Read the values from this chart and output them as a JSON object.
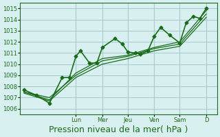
{
  "bg_color": "#d8f0f0",
  "grid_color": "#aacccc",
  "line_color": "#1a6b1a",
  "yticks": [
    1006,
    1007,
    1008,
    1009,
    1010,
    1011,
    1012,
    1013,
    1014,
    1015
  ],
  "ylim": [
    1005.5,
    1015.5
  ],
  "xlabel": "Pression niveau de la mer( hPa )",
  "xlabel_fontsize": 9,
  "day_labels": [
    "Lun",
    "Mer",
    "Jeu",
    "Ven",
    "Sam",
    "D"
  ],
  "day_positions": [
    0.285,
    0.43,
    0.57,
    0.715,
    0.855,
    1.0
  ],
  "series": [
    [
      [
        0.0,
        1007.7
      ],
      [
        0.07,
        1007.2
      ],
      [
        0.14,
        1006.5
      ],
      [
        0.21,
        1008.8
      ],
      [
        0.25,
        1008.8
      ],
      [
        0.285,
        1010.7
      ],
      [
        0.31,
        1011.2
      ],
      [
        0.36,
        1010.1
      ],
      [
        0.4,
        1010.1
      ],
      [
        0.43,
        1011.5
      ],
      [
        0.5,
        1012.3
      ],
      [
        0.54,
        1011.8
      ],
      [
        0.57,
        1011.1
      ],
      [
        0.61,
        1011.0
      ],
      [
        0.64,
        1010.9
      ],
      [
        0.68,
        1011.2
      ],
      [
        0.715,
        1012.5
      ],
      [
        0.75,
        1013.3
      ],
      [
        0.8,
        1012.6
      ],
      [
        0.855,
        1011.9
      ],
      [
        0.89,
        1013.7
      ],
      [
        0.93,
        1014.3
      ],
      [
        0.965,
        1014.1
      ],
      [
        1.0,
        1015.0
      ]
    ],
    [
      [
        0.0,
        1007.5
      ],
      [
        0.14,
        1006.8
      ],
      [
        0.285,
        1009.2
      ],
      [
        0.43,
        1010.5
      ],
      [
        0.57,
        1010.8
      ],
      [
        0.715,
        1011.5
      ],
      [
        0.855,
        1012.0
      ],
      [
        1.0,
        1014.8
      ]
    ],
    [
      [
        0.0,
        1007.5
      ],
      [
        0.14,
        1007.0
      ],
      [
        0.285,
        1009.0
      ],
      [
        0.43,
        1010.3
      ],
      [
        0.57,
        1010.7
      ],
      [
        0.715,
        1011.4
      ],
      [
        0.855,
        1011.8
      ],
      [
        1.0,
        1014.5
      ]
    ],
    [
      [
        0.0,
        1007.4
      ],
      [
        0.14,
        1006.7
      ],
      [
        0.285,
        1008.8
      ],
      [
        0.43,
        1010.0
      ],
      [
        0.57,
        1010.5
      ],
      [
        0.715,
        1011.2
      ],
      [
        0.855,
        1011.6
      ],
      [
        1.0,
        1014.2
      ]
    ]
  ]
}
